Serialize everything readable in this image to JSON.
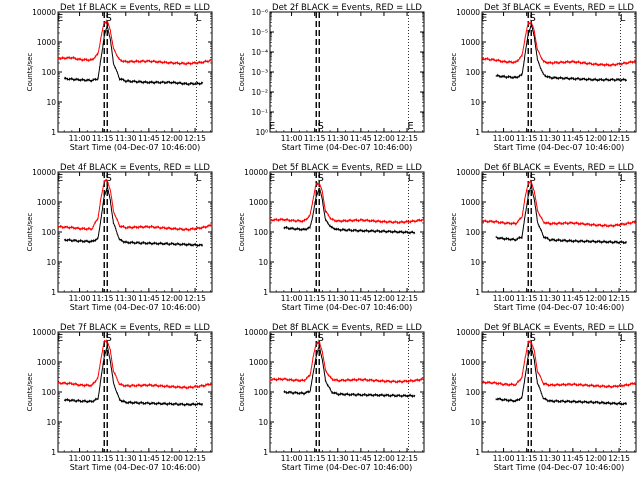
{
  "chart_data": [
    {
      "type": "line",
      "title": "Det 1f BLACK = Events, RED = LLD",
      "xlabel": "Start Time (04-Dec-07 10:46:00)",
      "ylabel": "Counts/sec",
      "x_ticks": [
        "11:00",
        "11:15",
        "11:30",
        "11:45",
        "12:00",
        "12:15"
      ],
      "y_ticks": [
        "1",
        "10",
        "100",
        "1000",
        "10000"
      ],
      "ylim": [
        1,
        10000
      ],
      "y_scale": "log",
      "xlim": [
        "10:46",
        "12:26"
      ],
      "markers": [
        {
          "label": "E",
          "time": "10:46"
        },
        {
          "label": "S",
          "time": "11:17"
        },
        {
          "label": "L",
          "time": "12:16"
        }
      ],
      "series": [
        {
          "name": "BLACK = Events",
          "color": "#000000",
          "x": [
            "10:50",
            "11:00",
            "11:08",
            "11:12",
            "11:14",
            "11:16",
            "11:18",
            "11:20",
            "11:22",
            "11:26",
            "11:30",
            "11:45",
            "12:00",
            "12:10",
            "12:20"
          ],
          "values": [
            60,
            55,
            52,
            60,
            300,
            1500,
            3500,
            1200,
            200,
            60,
            50,
            45,
            45,
            40,
            42
          ]
        },
        {
          "name": "RED = LLD",
          "color": "#ff0000",
          "x": [
            "10:46",
            "10:55",
            "11:00",
            "11:08",
            "11:12",
            "11:14",
            "11:16",
            "11:18",
            "11:20",
            "11:22",
            "11:26",
            "11:30",
            "11:45",
            "12:00",
            "12:10",
            "12:20",
            "12:26"
          ],
          "values": [
            280,
            300,
            260,
            250,
            400,
            1500,
            4500,
            4800,
            2500,
            600,
            250,
            220,
            230,
            200,
            190,
            210,
            250
          ]
        }
      ]
    },
    {
      "type": "line",
      "title": "Det 2f BLACK = Events, RED = LLD",
      "xlabel": "Start Time (04-Dec-07 10:46:00)",
      "ylabel": "Counts/sec",
      "x_ticks": [
        "11:00",
        "11:15",
        "11:30",
        "11:45",
        "12:00",
        "12:15"
      ],
      "y_ticks": [
        "10⁰",
        "10⁻¹",
        "10⁻²",
        "10⁻³",
        "10⁻⁴",
        "10⁻⁵",
        "10⁻⁶"
      ],
      "ylim": [
        1e-06,
        1
      ],
      "y_scale": "log",
      "xlim": [
        "10:46",
        "12:26"
      ],
      "markers": [
        {
          "label": "E",
          "time": "10:46"
        },
        {
          "label": "S",
          "time": "11:17"
        },
        {
          "label": "E",
          "time": "12:16"
        }
      ],
      "series": []
    },
    {
      "type": "line",
      "title": "Det 3f BLACK = Events, RED = LLD",
      "xlabel": "Start Time (04-Dec-07 10:46:00)",
      "ylabel": "Counts/sec",
      "x_ticks": [
        "11:00",
        "11:15",
        "11:30",
        "11:45",
        "12:00",
        "12:15"
      ],
      "y_ticks": [
        "1",
        "10",
        "100",
        "1000",
        "10000"
      ],
      "ylim": [
        1,
        10000
      ],
      "y_scale": "log",
      "xlim": [
        "10:46",
        "12:26"
      ],
      "markers": [
        {
          "label": "E",
          "time": "10:46"
        },
        {
          "label": "S",
          "time": "11:17"
        },
        {
          "label": "L",
          "time": "12:16"
        }
      ],
      "series": [
        {
          "name": "BLACK = Events",
          "color": "#000000",
          "x": [
            "10:55",
            "11:00",
            "11:08",
            "11:12",
            "11:14",
            "11:16",
            "11:18",
            "11:20",
            "11:22",
            "11:26",
            "11:30",
            "11:45",
            "12:00",
            "12:10",
            "12:20"
          ],
          "values": [
            75,
            70,
            65,
            80,
            400,
            1800,
            3800,
            1500,
            250,
            80,
            65,
            60,
            55,
            55,
            55
          ]
        },
        {
          "name": "RED = LLD",
          "color": "#ff0000",
          "x": [
            "10:46",
            "10:55",
            "11:00",
            "11:08",
            "11:12",
            "11:14",
            "11:16",
            "11:18",
            "11:20",
            "11:22",
            "11:26",
            "11:30",
            "11:45",
            "12:00",
            "12:10",
            "12:20",
            "12:26"
          ],
          "values": [
            280,
            250,
            220,
            210,
            350,
            1400,
            4200,
            4500,
            2300,
            550,
            220,
            200,
            220,
            180,
            170,
            200,
            230
          ]
        }
      ]
    },
    {
      "type": "line",
      "title": "Det 4f BLACK = Events, RED = LLD",
      "xlabel": "Start Time (04-Dec-07 10:46:00)",
      "ylabel": "Counts/sec",
      "x_ticks": [
        "11:00",
        "11:15",
        "11:30",
        "11:45",
        "12:00",
        "12:15"
      ],
      "y_ticks": [
        "1",
        "10",
        "100",
        "1000",
        "10000"
      ],
      "ylim": [
        1,
        10000
      ],
      "y_scale": "log",
      "xlim": [
        "10:46",
        "12:26"
      ],
      "markers": [
        {
          "label": "E",
          "time": "10:46"
        },
        {
          "label": "S",
          "time": "11:17"
        },
        {
          "label": "L",
          "time": "12:16"
        }
      ],
      "series": [
        {
          "name": "BLACK = Events",
          "color": "#000000",
          "x": [
            "10:50",
            "11:00",
            "11:08",
            "11:12",
            "11:14",
            "11:16",
            "11:18",
            "11:20",
            "11:22",
            "11:26",
            "11:30",
            "11:45",
            "12:00",
            "12:10",
            "12:20"
          ],
          "values": [
            55,
            50,
            48,
            60,
            300,
            1500,
            3300,
            1100,
            200,
            55,
            45,
            42,
            40,
            38,
            36
          ]
        },
        {
          "name": "RED = LLD",
          "color": "#ff0000",
          "x": [
            "10:46",
            "10:55",
            "11:00",
            "11:08",
            "11:12",
            "11:14",
            "11:16",
            "11:18",
            "11:20",
            "11:22",
            "11:26",
            "11:30",
            "11:45",
            "12:00",
            "12:10",
            "12:20",
            "12:26"
          ],
          "values": [
            150,
            140,
            130,
            125,
            300,
            1400,
            5000,
            5200,
            2500,
            500,
            160,
            140,
            150,
            130,
            120,
            140,
            170
          ]
        }
      ]
    },
    {
      "type": "line",
      "title": "Det 5f BLACK = Events, RED = LLD",
      "xlabel": "Start Time (04-Dec-07 10:46:00)",
      "ylabel": "Counts/sec",
      "x_ticks": [
        "11:00",
        "11:15",
        "11:30",
        "11:45",
        "12:00",
        "12:15"
      ],
      "y_ticks": [
        "1",
        "10",
        "100",
        "1000",
        "10000"
      ],
      "ylim": [
        1,
        10000
      ],
      "y_scale": "log",
      "xlim": [
        "10:46",
        "12:26"
      ],
      "markers": [
        {
          "label": "E",
          "time": "10:46"
        },
        {
          "label": "S",
          "time": "11:17"
        },
        {
          "label": "L",
          "time": "12:16"
        }
      ],
      "series": [
        {
          "name": "BLACK = Events",
          "color": "#000000",
          "x": [
            "10:55",
            "11:00",
            "11:08",
            "11:12",
            "11:14",
            "11:16",
            "11:18",
            "11:20",
            "11:22",
            "11:26",
            "11:30",
            "11:45",
            "12:00",
            "12:10",
            "12:20"
          ],
          "values": [
            140,
            130,
            120,
            140,
            400,
            1500,
            3000,
            1200,
            250,
            140,
            120,
            110,
            105,
            100,
            95
          ]
        },
        {
          "name": "RED = LLD",
          "color": "#ff0000",
          "x": [
            "10:46",
            "10:55",
            "11:00",
            "11:08",
            "11:12",
            "11:14",
            "11:16",
            "11:18",
            "11:20",
            "11:22",
            "11:26",
            "11:30",
            "11:45",
            "12:00",
            "12:10",
            "12:20",
            "12:26"
          ],
          "values": [
            250,
            260,
            240,
            230,
            350,
            1300,
            4000,
            4200,
            2200,
            500,
            260,
            230,
            250,
            220,
            210,
            230,
            260
          ]
        }
      ]
    },
    {
      "type": "line",
      "title": "Det 6f BLACK = Events, RED = LLD",
      "xlabel": "Start Time (04-Dec-07 10:46:00)",
      "ylabel": "Counts/sec",
      "x_ticks": [
        "11:00",
        "11:15",
        "11:30",
        "11:45",
        "12:00",
        "12:15"
      ],
      "y_ticks": [
        "1",
        "10",
        "100",
        "1000",
        "10000"
      ],
      "ylim": [
        1,
        10000
      ],
      "y_scale": "log",
      "xlim": [
        "10:46",
        "12:26"
      ],
      "markers": [
        {
          "label": "E",
          "time": "10:46"
        },
        {
          "label": "S",
          "time": "11:17"
        },
        {
          "label": "L",
          "time": "12:16"
        }
      ],
      "series": [
        {
          "name": "BLACK = Events",
          "color": "#000000",
          "x": [
            "10:55",
            "11:00",
            "11:08",
            "11:12",
            "11:14",
            "11:16",
            "11:18",
            "11:20",
            "11:22",
            "11:26",
            "11:30",
            "11:45",
            "12:00",
            "12:10",
            "12:20"
          ],
          "values": [
            65,
            60,
            55,
            70,
            350,
            1600,
            3400,
            1200,
            220,
            70,
            55,
            50,
            48,
            46,
            45
          ]
        },
        {
          "name": "RED = LLD",
          "color": "#ff0000",
          "x": [
            "10:46",
            "10:55",
            "11:00",
            "11:08",
            "11:12",
            "11:14",
            "11:16",
            "11:18",
            "11:20",
            "11:22",
            "11:26",
            "11:30",
            "11:45",
            "12:00",
            "12:10",
            "12:20",
            "12:26"
          ],
          "values": [
            230,
            220,
            200,
            190,
            320,
            1400,
            4400,
            4600,
            2300,
            520,
            210,
            190,
            200,
            170,
            160,
            190,
            220
          ]
        }
      ]
    },
    {
      "type": "line",
      "title": "Det 7f BLACK = Events, RED = LLD",
      "xlabel": "Start Time (04-Dec-07 10:46:00)",
      "ylabel": "Counts/sec",
      "x_ticks": [
        "11:00",
        "11:15",
        "11:30",
        "11:45",
        "12:00",
        "12:15"
      ],
      "y_ticks": [
        "1",
        "10",
        "100",
        "1000",
        "10000"
      ],
      "ylim": [
        1,
        10000
      ],
      "y_scale": "log",
      "xlim": [
        "10:46",
        "12:26"
      ],
      "markers": [
        {
          "label": "E",
          "time": "10:46"
        },
        {
          "label": "S",
          "time": "11:17"
        },
        {
          "label": "L",
          "time": "12:16"
        }
      ],
      "series": [
        {
          "name": "BLACK = Events",
          "color": "#000000",
          "x": [
            "10:50",
            "11:00",
            "11:08",
            "11:12",
            "11:14",
            "11:16",
            "11:18",
            "11:20",
            "11:22",
            "11:26",
            "11:30",
            "11:45",
            "12:00",
            "12:10",
            "12:20"
          ],
          "values": [
            55,
            50,
            48,
            60,
            300,
            1500,
            3300,
            1100,
            200,
            55,
            45,
            42,
            40,
            38,
            40
          ]
        },
        {
          "name": "RED = LLD",
          "color": "#ff0000",
          "x": [
            "10:46",
            "10:55",
            "11:00",
            "11:08",
            "11:12",
            "11:14",
            "11:16",
            "11:18",
            "11:20",
            "11:22",
            "11:26",
            "11:30",
            "11:45",
            "12:00",
            "12:10",
            "12:20",
            "12:26"
          ],
          "values": [
            200,
            190,
            170,
            165,
            300,
            1400,
            4800,
            5000,
            2400,
            500,
            180,
            160,
            170,
            150,
            140,
            160,
            190
          ]
        }
      ]
    },
    {
      "type": "line",
      "title": "Det 8f BLACK = Events, RED = LLD",
      "xlabel": "Start Time (04-Dec-07 10:46:00)",
      "ylabel": "Counts/sec",
      "x_ticks": [
        "11:00",
        "11:15",
        "11:30",
        "11:45",
        "12:00",
        "12:15"
      ],
      "y_ticks": [
        "1",
        "10",
        "100",
        "1000",
        "10000"
      ],
      "ylim": [
        1,
        10000
      ],
      "y_scale": "log",
      "xlim": [
        "10:46",
        "12:26"
      ],
      "markers": [
        {
          "label": "E",
          "time": "10:46"
        },
        {
          "label": "S",
          "time": "11:17"
        },
        {
          "label": "L",
          "time": "12:16"
        }
      ],
      "series": [
        {
          "name": "BLACK = Events",
          "color": "#000000",
          "x": [
            "10:55",
            "11:00",
            "11:08",
            "11:12",
            "11:14",
            "11:16",
            "11:18",
            "11:20",
            "11:22",
            "11:26",
            "11:30",
            "11:45",
            "12:00",
            "12:10",
            "12:20"
          ],
          "values": [
            100,
            95,
            90,
            105,
            400,
            1600,
            3300,
            1200,
            240,
            100,
            85,
            80,
            78,
            75,
            75
          ]
        },
        {
          "name": "RED = LLD",
          "color": "#ff0000",
          "x": [
            "10:46",
            "10:55",
            "11:00",
            "11:08",
            "11:12",
            "11:14",
            "11:16",
            "11:18",
            "11:20",
            "11:22",
            "11:26",
            "11:30",
            "11:45",
            "12:00",
            "12:10",
            "12:20",
            "12:26"
          ],
          "values": [
            260,
            270,
            250,
            240,
            360,
            1400,
            4300,
            4500,
            2300,
            520,
            270,
            240,
            260,
            230,
            220,
            240,
            270
          ]
        }
      ]
    },
    {
      "type": "line",
      "title": "Det 9f BLACK = Events, RED = LLD",
      "xlabel": "Start Time (04-Dec-07 10:46:00)",
      "ylabel": "Counts/sec",
      "x_ticks": [
        "11:00",
        "11:15",
        "11:30",
        "11:45",
        "12:00",
        "12:15"
      ],
      "y_ticks": [
        "1",
        "10",
        "100",
        "1000",
        "10000"
      ],
      "ylim": [
        1,
        10000
      ],
      "y_scale": "log",
      "xlim": [
        "10:46",
        "12:26"
      ],
      "markers": [
        {
          "label": "E",
          "time": "10:46"
        },
        {
          "label": "S",
          "time": "11:17"
        },
        {
          "label": "L",
          "time": "12:16"
        }
      ],
      "series": [
        {
          "name": "BLACK = Events",
          "color": "#000000",
          "x": [
            "10:55",
            "11:00",
            "11:08",
            "11:12",
            "11:14",
            "11:16",
            "11:18",
            "11:20",
            "11:22",
            "11:26",
            "11:30",
            "11:45",
            "12:00",
            "12:10",
            "12:20"
          ],
          "values": [
            60,
            55,
            50,
            65,
            330,
            1500,
            3300,
            1100,
            200,
            60,
            50,
            48,
            45,
            42,
            40
          ]
        },
        {
          "name": "RED = LLD",
          "color": "#ff0000",
          "x": [
            "10:46",
            "10:55",
            "11:00",
            "11:08",
            "11:12",
            "11:14",
            "11:16",
            "11:18",
            "11:20",
            "11:22",
            "11:26",
            "11:30",
            "11:45",
            "12:00",
            "12:10",
            "12:20",
            "12:26"
          ],
          "values": [
            210,
            200,
            180,
            175,
            310,
            1400,
            4500,
            4700,
            2300,
            500,
            190,
            170,
            180,
            160,
            150,
            170,
            200
          ]
        }
      ]
    }
  ]
}
